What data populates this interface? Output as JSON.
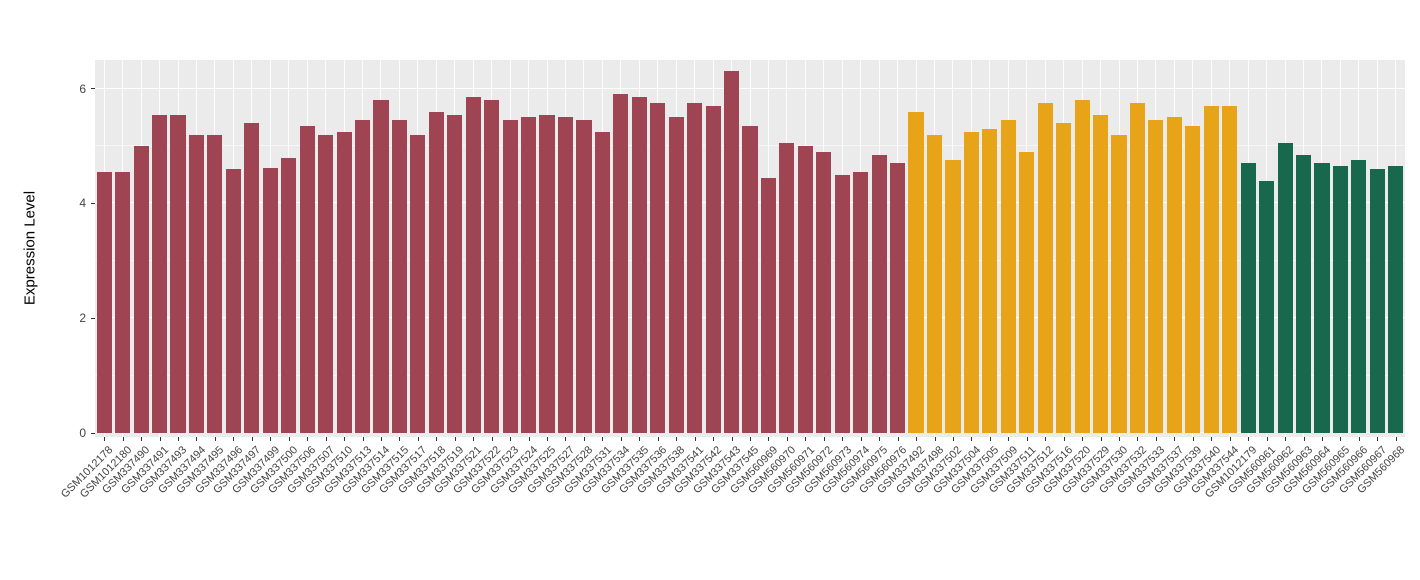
{
  "chart_data": {
    "type": "bar",
    "title": "",
    "xlabel": "",
    "ylabel": "Expression Level",
    "ylim": [
      0,
      6.5
    ],
    "yticks": [
      0,
      2,
      4,
      6
    ],
    "yticks_minor": [
      1,
      3,
      5
    ],
    "grid": true,
    "legend": "none",
    "panel_background": "#EBEBEB",
    "grid_color": "#FFFFFF",
    "groups": [
      {
        "name": "group-1",
        "color": "#9E4452"
      },
      {
        "name": "group-2",
        "color": "#E8A419"
      },
      {
        "name": "group-3",
        "color": "#17684C"
      }
    ],
    "bars": [
      {
        "label": "GSM1012178",
        "value": 4.55,
        "group": 0
      },
      {
        "label": "GSM1012180",
        "value": 4.55,
        "group": 0
      },
      {
        "label": "GSM337490",
        "value": 5.0,
        "group": 0
      },
      {
        "label": "GSM337491",
        "value": 5.55,
        "group": 0
      },
      {
        "label": "GSM337493",
        "value": 5.55,
        "group": 0
      },
      {
        "label": "GSM337494",
        "value": 5.2,
        "group": 0
      },
      {
        "label": "GSM337495",
        "value": 5.2,
        "group": 0
      },
      {
        "label": "GSM337496",
        "value": 4.6,
        "group": 0
      },
      {
        "label": "GSM337497",
        "value": 5.4,
        "group": 0
      },
      {
        "label": "GSM337499",
        "value": 4.62,
        "group": 0
      },
      {
        "label": "GSM337500",
        "value": 4.8,
        "group": 0
      },
      {
        "label": "GSM337506",
        "value": 5.35,
        "group": 0
      },
      {
        "label": "GSM337507",
        "value": 5.2,
        "group": 0
      },
      {
        "label": "GSM337510",
        "value": 5.25,
        "group": 0
      },
      {
        "label": "GSM337513",
        "value": 5.45,
        "group": 0
      },
      {
        "label": "GSM337514",
        "value": 5.8,
        "group": 0
      },
      {
        "label": "GSM337515",
        "value": 5.45,
        "group": 0
      },
      {
        "label": "GSM337517",
        "value": 5.2,
        "group": 0
      },
      {
        "label": "GSM337518",
        "value": 5.6,
        "group": 0
      },
      {
        "label": "GSM337519",
        "value": 5.55,
        "group": 0
      },
      {
        "label": "GSM337521",
        "value": 5.85,
        "group": 0
      },
      {
        "label": "GSM337522",
        "value": 5.8,
        "group": 0
      },
      {
        "label": "GSM337523",
        "value": 5.45,
        "group": 0
      },
      {
        "label": "GSM337524",
        "value": 5.5,
        "group": 0
      },
      {
        "label": "GSM337525",
        "value": 5.55,
        "group": 0
      },
      {
        "label": "GSM337527",
        "value": 5.5,
        "group": 0
      },
      {
        "label": "GSM337528",
        "value": 5.45,
        "group": 0
      },
      {
        "label": "GSM337531",
        "value": 5.25,
        "group": 0
      },
      {
        "label": "GSM337534",
        "value": 5.9,
        "group": 0
      },
      {
        "label": "GSM337535",
        "value": 5.85,
        "group": 0
      },
      {
        "label": "GSM337536",
        "value": 5.75,
        "group": 0
      },
      {
        "label": "GSM337538",
        "value": 5.5,
        "group": 0
      },
      {
        "label": "GSM337541",
        "value": 5.75,
        "group": 0
      },
      {
        "label": "GSM337542",
        "value": 5.7,
        "group": 0
      },
      {
        "label": "GSM337543",
        "value": 6.3,
        "group": 0
      },
      {
        "label": "GSM337545",
        "value": 5.35,
        "group": 0
      },
      {
        "label": "GSM560969",
        "value": 4.45,
        "group": 0
      },
      {
        "label": "GSM560970",
        "value": 5.05,
        "group": 0
      },
      {
        "label": "GSM560971",
        "value": 5.0,
        "group": 0
      },
      {
        "label": "GSM560972",
        "value": 4.9,
        "group": 0
      },
      {
        "label": "GSM560973",
        "value": 4.5,
        "group": 0
      },
      {
        "label": "GSM560974",
        "value": 4.55,
        "group": 0
      },
      {
        "label": "GSM560975",
        "value": 4.85,
        "group": 0
      },
      {
        "label": "GSM560976",
        "value": 4.7,
        "group": 0
      },
      {
        "label": "GSM337492",
        "value": 5.6,
        "group": 1
      },
      {
        "label": "GSM337498",
        "value": 5.2,
        "group": 1
      },
      {
        "label": "GSM337502",
        "value": 4.75,
        "group": 1
      },
      {
        "label": "GSM337504",
        "value": 5.25,
        "group": 1
      },
      {
        "label": "GSM337505",
        "value": 5.3,
        "group": 1
      },
      {
        "label": "GSM337509",
        "value": 5.45,
        "group": 1
      },
      {
        "label": "GSM337511",
        "value": 4.9,
        "group": 1
      },
      {
        "label": "GSM337512",
        "value": 5.75,
        "group": 1
      },
      {
        "label": "GSM337516",
        "value": 5.4,
        "group": 1
      },
      {
        "label": "GSM337520",
        "value": 5.8,
        "group": 1
      },
      {
        "label": "GSM337529",
        "value": 5.55,
        "group": 1
      },
      {
        "label": "GSM337530",
        "value": 5.2,
        "group": 1
      },
      {
        "label": "GSM337532",
        "value": 5.75,
        "group": 1
      },
      {
        "label": "GSM337533",
        "value": 5.45,
        "group": 1
      },
      {
        "label": "GSM337537",
        "value": 5.5,
        "group": 1
      },
      {
        "label": "GSM337539",
        "value": 5.35,
        "group": 1
      },
      {
        "label": "GSM337540",
        "value": 5.7,
        "group": 1
      },
      {
        "label": "GSM337544",
        "value": 5.7,
        "group": 1
      },
      {
        "label": "GSM1012179",
        "value": 4.7,
        "group": 2
      },
      {
        "label": "GSM560961",
        "value": 4.4,
        "group": 2
      },
      {
        "label": "GSM560962",
        "value": 5.05,
        "group": 2
      },
      {
        "label": "GSM560963",
        "value": 4.85,
        "group": 2
      },
      {
        "label": "GSM560964",
        "value": 4.7,
        "group": 2
      },
      {
        "label": "GSM560965",
        "value": 4.65,
        "group": 2
      },
      {
        "label": "GSM560966",
        "value": 4.75,
        "group": 2
      },
      {
        "label": "GSM560967",
        "value": 4.6,
        "group": 2
      },
      {
        "label": "GSM560968",
        "value": 4.65,
        "group": 2
      }
    ]
  }
}
